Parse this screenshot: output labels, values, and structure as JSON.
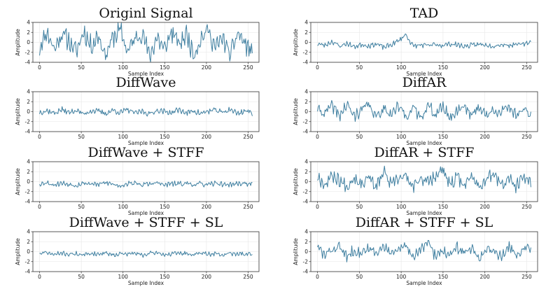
{
  "chart_data": [
    {
      "type": "line",
      "title": "Originl Signal",
      "xlabel": "Sample Index",
      "ylabel": "Amplitude",
      "xlim": [
        -8,
        263
      ],
      "ylim": [
        -4,
        4
      ],
      "xticks": [
        0,
        50,
        100,
        150,
        200,
        250
      ],
      "yticks": [
        -4,
        -2,
        0,
        2,
        4
      ],
      "grid": true,
      "n": 256,
      "amp": 1.6,
      "seed": 11,
      "y_key": [
        -1.0,
        2.2,
        -1.4,
        1.8,
        0.3,
        -2.0,
        2.3,
        -0.8,
        1.5,
        -2.6,
        1.0,
        2.4,
        -1.8,
        0.6,
        2.1,
        -3.0,
        1.2,
        -1.6,
        2.2,
        -0.5,
        1.7,
        -2.3,
        0.8,
        2.5,
        -1.2,
        1.0,
        -2.8,
        2.0,
        -0.3,
        -2.0
      ]
    },
    {
      "type": "line",
      "title": "TAD",
      "xlabel": "Sample Index",
      "ylabel": "Amplitude",
      "xlim": [
        -8,
        263
      ],
      "ylim": [
        -4,
        4
      ],
      "xticks": [
        0,
        50,
        100,
        150,
        200,
        250
      ],
      "yticks": [
        -4,
        -2,
        0,
        2,
        4
      ],
      "grid": true,
      "n": 256,
      "amp": 0.4,
      "seed": 23,
      "y_key": [
        -0.3,
        -0.6,
        0.2,
        -0.8,
        -0.2,
        -0.9,
        -0.4,
        -0.7,
        -0.3,
        -1.0,
        -0.5,
        0.3,
        1.6,
        -0.8,
        -0.5,
        -0.7,
        -0.4,
        -0.6,
        -0.3,
        -0.5,
        -0.8,
        -0.6,
        -0.4,
        -0.5,
        -0.7,
        -0.4,
        -0.6,
        -0.3,
        -0.5,
        0.2
      ]
    },
    {
      "type": "line",
      "title": "DiffWave",
      "xlabel": "Sample Index",
      "ylabel": "Amplitude",
      "xlim": [
        -8,
        263
      ],
      "ylim": [
        -4,
        4
      ],
      "xticks": [
        0,
        50,
        100,
        150,
        200,
        250
      ],
      "yticks": [
        -4,
        -2,
        0,
        2,
        4
      ],
      "grid": true,
      "n": 256,
      "amp": 0.45,
      "seed": 37,
      "y_key": [
        -0.1,
        0.2,
        -0.3,
        0.4,
        -0.2,
        0.3,
        -0.5,
        0.2,
        0.1,
        -0.4,
        0.3,
        -0.2,
        0.4,
        -0.3,
        0.1,
        -0.5,
        0.3,
        0.0,
        -0.2,
        0.4,
        -0.3,
        0.2,
        -0.4,
        0.1,
        0.3,
        -0.2,
        0.5,
        -0.4,
        0.2,
        -0.3
      ]
    },
    {
      "type": "line",
      "title": "DiffAR",
      "xlabel": "Sample Index",
      "ylabel": "Amplitude",
      "xlim": [
        -8,
        263
      ],
      "ylim": [
        -4,
        4
      ],
      "xticks": [
        0,
        50,
        100,
        150,
        200,
        250
      ],
      "yticks": [
        -4,
        -2,
        0,
        2,
        4
      ],
      "grid": true,
      "n": 256,
      "amp": 0.95,
      "seed": 41,
      "y_key": [
        0.6,
        -0.4,
        1.2,
        -0.8,
        1.4,
        -1.0,
        0.5,
        1.3,
        -1.2,
        0.9,
        -0.5,
        1.1,
        -0.9,
        0.7,
        -1.1,
        1.3,
        -0.6,
        1.0,
        -1.3,
        0.4,
        1.2,
        -0.8,
        1.1,
        -1.0,
        0.6,
        -0.4,
        1.2,
        -0.7,
        0.9,
        -0.9
      ]
    },
    {
      "type": "line",
      "title": "DiffWave + STFF",
      "xlabel": "Sample Index",
      "ylabel": "Amplitude",
      "xlim": [
        -8,
        263
      ],
      "ylim": [
        -4,
        4
      ],
      "xticks": [
        0,
        50,
        100,
        150,
        200,
        250
      ],
      "yticks": [
        -4,
        -2,
        0,
        2,
        4
      ],
      "grid": true,
      "n": 256,
      "amp": 0.4,
      "seed": 53,
      "y_key": [
        -0.4,
        -0.2,
        -0.6,
        -0.3,
        -0.5,
        -0.7,
        -0.3,
        -0.4,
        -0.6,
        -0.2,
        -0.5,
        -0.8,
        -0.4,
        -0.3,
        -0.6,
        -0.5,
        -0.2,
        -0.7,
        -0.4,
        -0.5,
        -0.3,
        -0.6,
        -0.4,
        -0.7,
        -0.3,
        -0.5,
        -0.6,
        -0.4,
        -0.3,
        -0.6
      ]
    },
    {
      "type": "line",
      "title": "DiffAR + STFF",
      "xlabel": "Sample Index",
      "ylabel": "Amplitude",
      "xlim": [
        -8,
        263
      ],
      "ylim": [
        -4,
        4
      ],
      "xticks": [
        0,
        50,
        100,
        150,
        200,
        250
      ],
      "yticks": [
        -4,
        -2,
        0,
        2,
        4
      ],
      "grid": true,
      "n": 256,
      "amp": 1.05,
      "seed": 67,
      "y_key": [
        1.2,
        -0.6,
        1.4,
        0.2,
        -1.0,
        1.0,
        -0.4,
        1.3,
        -1.2,
        2.0,
        -0.8,
        0.6,
        1.1,
        -1.3,
        0.9,
        -0.2,
        1.4,
        2.3,
        -0.9,
        0.8,
        -0.6,
        1.2,
        -1.0,
        0.7,
        1.5,
        -0.7,
        0.5,
        -1.1,
        0.9,
        -0.3
      ]
    },
    {
      "type": "line",
      "title": "DiffWave + STFF + SL",
      "xlabel": "Sample Index",
      "ylabel": "Amplitude",
      "xlim": [
        -8,
        263
      ],
      "ylim": [
        -4,
        4
      ],
      "xticks": [
        0,
        50,
        100,
        150,
        200,
        250
      ],
      "yticks": [
        -4,
        -2,
        0,
        2,
        4
      ],
      "grid": true,
      "n": 256,
      "amp": 0.35,
      "seed": 71,
      "y_key": [
        -0.4,
        -0.2,
        -0.6,
        -0.3,
        -0.5,
        -0.4,
        -0.7,
        -0.3,
        -0.5,
        -0.2,
        -0.6,
        -0.4,
        -0.5,
        -0.3,
        -0.7,
        -0.4,
        -0.2,
        -0.6,
        -0.5,
        -0.3,
        -0.4,
        -0.6,
        -0.3,
        -0.5,
        -0.4,
        -0.7,
        -0.3,
        -0.5,
        -0.4,
        -0.6
      ]
    },
    {
      "type": "line",
      "title": "DiffAR + STFF + SL",
      "xlabel": "Sample Index",
      "ylabel": "Amplitude",
      "xlim": [
        -8,
        263
      ],
      "ylim": [
        -4,
        4
      ],
      "xticks": [
        0,
        50,
        100,
        150,
        200,
        250
      ],
      "yticks": [
        -4,
        -2,
        0,
        2,
        4
      ],
      "grid": true,
      "n": 256,
      "amp": 0.9,
      "seed": 83,
      "y_key": [
        0.9,
        -0.8,
        0.4,
        1.1,
        -1.2,
        0.6,
        -0.3,
        1.0,
        -0.9,
        1.3,
        -0.6,
        0.2,
        1.2,
        -1.0,
        0.5,
        1.7,
        -0.8,
        0.4,
        -1.1,
        0.9,
        -0.4,
        1.0,
        -1.3,
        0.6,
        0.3,
        -0.9,
        1.1,
        -0.5,
        0.7,
        0.9
      ]
    }
  ]
}
